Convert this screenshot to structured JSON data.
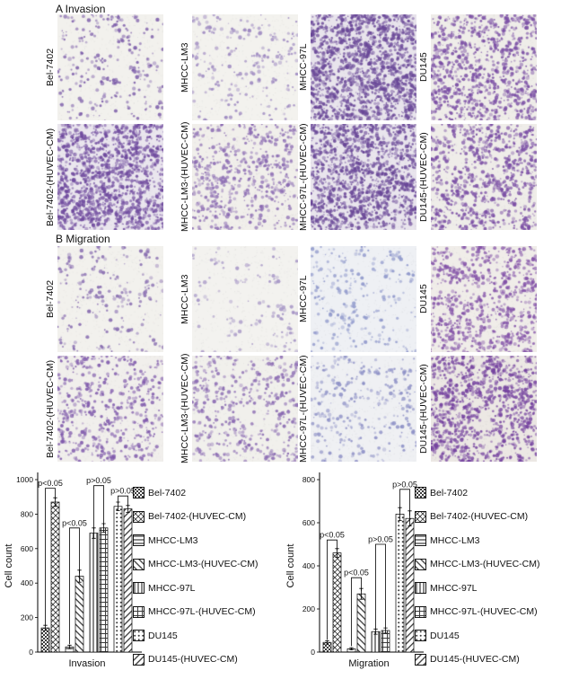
{
  "panels": [
    {
      "label": "A Invasion",
      "rows": [
        {
          "cells": [
            {
              "label": "Bel-7402",
              "density": 260,
              "color": "#7a5aa8",
              "bg": "#f2f1ed"
            },
            {
              "label": "MHCC-LM3",
              "density": 230,
              "color": "#9a85bf",
              "bg": "#f3f2ee"
            },
            {
              "label": "MHCC-97L",
              "density": 1500,
              "color": "#6a4898",
              "bg": "#e8e4ec"
            },
            {
              "label": "DU145",
              "density": 950,
              "color": "#7b4fa5",
              "bg": "#efede9"
            }
          ]
        },
        {
          "cells": [
            {
              "label": "Bel-7402-(HUVEC-CM)",
              "density": 1400,
              "color": "#6f4a9e",
              "bg": "#eae6ee"
            },
            {
              "label": "MHCC-LM3-(HUVEC-CM)",
              "density": 600,
              "color": "#8a6ab2",
              "bg": "#f1efeb"
            },
            {
              "label": "MHCC-97L-(HUVEC-CM)",
              "density": 1400,
              "color": "#6a4898",
              "bg": "#e9e5ed"
            },
            {
              "label": "DU145-(HUVEC-CM)",
              "density": 850,
              "color": "#7b4fa5",
              "bg": "#efede9"
            }
          ]
        }
      ]
    },
    {
      "label": "B Migration",
      "rows": [
        {
          "cells": [
            {
              "label": "Bel-7402",
              "density": 220,
              "color": "#8468ae",
              "bg": "#f2f1ed"
            },
            {
              "label": "MHCC-LM3",
              "density": 130,
              "color": "#a291c4",
              "bg": "#f3f2ef"
            },
            {
              "label": "MHCC-97L",
              "density": 260,
              "color": "#8e97cb",
              "bg": "#eef0f4"
            },
            {
              "label": "DU145",
              "density": 800,
              "color": "#8352a8",
              "bg": "#f0ede9"
            }
          ]
        },
        {
          "cells": [
            {
              "label": "Bel-7402-(HUVEC-CM)",
              "density": 520,
              "color": "#7e58ab",
              "bg": "#f1efec"
            },
            {
              "label": "MHCC-LM3-(HUVEC-CM)",
              "density": 480,
              "color": "#8a6ab2",
              "bg": "#f1f0ec"
            },
            {
              "label": "MHCC-97L-(HUVEC-CM)",
              "density": 320,
              "color": "#8d90c6",
              "bg": "#eff0f3"
            },
            {
              "label": "DU145-(HUVEC-CM)",
              "density": 1100,
              "color": "#7644a0",
              "bg": "#ece8e4"
            }
          ]
        }
      ]
    }
  ],
  "chart_data": [
    {
      "type": "bar",
      "title": "",
      "xlabel": "Invasion",
      "ylabel": "Cell count",
      "ylim": [
        0,
        1000
      ],
      "yticks": [
        0,
        200,
        400,
        600,
        800,
        1000
      ],
      "categories": [
        "Bel-7402",
        "Bel-7402-(HUVEC-CM)",
        "MHCC-LM3",
        "MHCC-LM3-(HUVEC-CM)",
        "MHCC-97L",
        "MHCC-97L-(HUVEC-CM)",
        "DU145",
        "DU145-(HUVEC-CM)"
      ],
      "values": [
        140,
        870,
        30,
        440,
        690,
        720,
        845,
        830
      ],
      "errors": [
        15,
        25,
        10,
        35,
        30,
        25,
        25,
        20
      ],
      "annotations": [
        {
          "pair": [
            0,
            1
          ],
          "y": 950,
          "label": "p<0.05"
        },
        {
          "pair": [
            2,
            3
          ],
          "y": 720,
          "label": "p<0.05"
        },
        {
          "pair": [
            4,
            5
          ],
          "y": 965,
          "label": "p>0.05"
        },
        {
          "pair": [
            6,
            7
          ],
          "y": 905,
          "label": "p>0.05"
        }
      ],
      "legend_position": "right",
      "grid": false
    },
    {
      "type": "bar",
      "title": "",
      "xlabel": "Migration",
      "ylabel": "Cell count",
      "ylim": [
        0,
        800
      ],
      "yticks": [
        0,
        200,
        400,
        600,
        800
      ],
      "categories": [
        "Bel-7402",
        "Bel-7402-(HUVEC-CM)",
        "MHCC-LM3",
        "MHCC-LM3-(HUVEC-CM)",
        "MHCC-97L",
        "MHCC-97L-(HUVEC-CM)",
        "DU145",
        "DU145-(HUVEC-CM)"
      ],
      "values": [
        45,
        460,
        15,
        270,
        95,
        100,
        640,
        620
      ],
      "errors": [
        8,
        20,
        5,
        25,
        12,
        12,
        30,
        35
      ],
      "annotations": [
        {
          "pair": [
            0,
            1
          ],
          "y": 520,
          "label": "p<0.05"
        },
        {
          "pair": [
            2,
            3
          ],
          "y": 345,
          "label": "p<0.05"
        },
        {
          "pair": [
            4,
            5
          ],
          "y": 500,
          "label": "p>0.05"
        },
        {
          "pair": [
            6,
            7
          ],
          "y": 755,
          "label": "p>0.05"
        }
      ],
      "legend_position": "right",
      "grid": false
    }
  ]
}
